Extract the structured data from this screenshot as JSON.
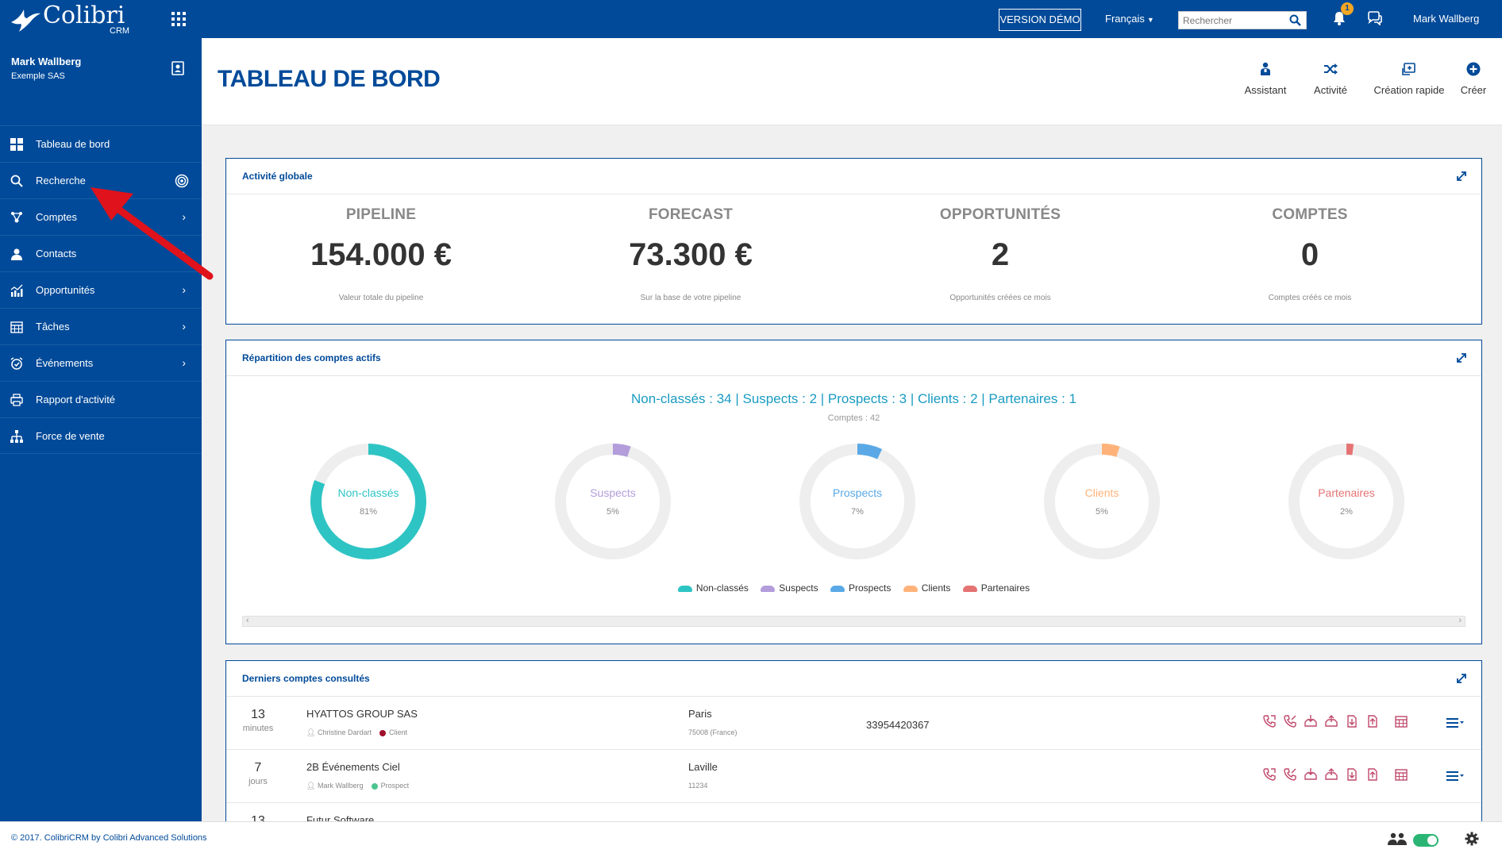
{
  "app": {
    "name": "Colibri",
    "subname": "CRM"
  },
  "topbar": {
    "demo_label": "VERSION DÉMO",
    "language": "Français",
    "search_placeholder": "Rechercher",
    "notifications_count": "1",
    "user_name": "Mark Wallberg"
  },
  "sidebar": {
    "user_name": "Mark Wallberg",
    "company": "Exemple SAS",
    "items": [
      {
        "label": "Tableau de bord",
        "icon": "dashboard-icon",
        "has_arrow": false
      },
      {
        "label": "Recherche",
        "icon": "search-icon",
        "has_arrow": false
      },
      {
        "label": "Comptes",
        "icon": "accounts-icon",
        "has_arrow": true
      },
      {
        "label": "Contacts",
        "icon": "contacts-icon",
        "has_arrow": true
      },
      {
        "label": "Opportunités",
        "icon": "chart-icon",
        "has_arrow": true
      },
      {
        "label": "Tâches",
        "icon": "calendar-grid-icon",
        "has_arrow": true
      },
      {
        "label": "Événements",
        "icon": "alarm-icon",
        "has_arrow": true
      },
      {
        "label": "Rapport d'activité",
        "icon": "printer-icon",
        "has_arrow": false
      },
      {
        "label": "Force de vente",
        "icon": "org-chart-icon",
        "has_arrow": false
      }
    ]
  },
  "header": {
    "title": "TABLEAU DE BORD",
    "actions": [
      {
        "label": "Assistant",
        "icon": "assistant-icon"
      },
      {
        "label": "Activité",
        "icon": "shuffle-icon"
      },
      {
        "label": "Création rapide",
        "icon": "quick-create-icon"
      },
      {
        "label": "Créer",
        "icon": "plus-circle-icon"
      }
    ]
  },
  "global_activity": {
    "title": "Activité globale",
    "kpis": [
      {
        "title": "PIPELINE",
        "value": "154.000 €",
        "subtitle": "Valeur totale du pipeline"
      },
      {
        "title": "FORECAST",
        "value": "73.300 €",
        "subtitle": "Sur la base de votre pipeline"
      },
      {
        "title": "OPPORTUNITÉS",
        "value": "2",
        "subtitle": "Opportunités créées ce mois"
      },
      {
        "title": "COMPTES",
        "value": "0",
        "subtitle": "Comptes créés ce mois"
      }
    ]
  },
  "accounts_split": {
    "title": "Répartition des comptes actifs",
    "summary": "Non-classés : 34 | Suspects : 2 | Prospects : 3 | Clients : 2 | Partenaires : 1",
    "total": "Comptes : 42",
    "colors": {
      "non_classes": "#2ec4c4",
      "suspects": "#b39ddb",
      "prospects": "#5aa9e6",
      "clients": "#ffb37a",
      "partenaires": "#e57373"
    }
  },
  "chart_data": {
    "type": "pie",
    "title": "Répartition des comptes actifs",
    "categories": [
      "Non-classés",
      "Suspects",
      "Prospects",
      "Clients",
      "Partenaires"
    ],
    "values": [
      34,
      2,
      3,
      2,
      1
    ],
    "percent_labels": [
      "81%",
      "5%",
      "7%",
      "5%",
      "2%"
    ],
    "percent_values": [
      81,
      5,
      7,
      5,
      2
    ],
    "colors": [
      "#2ec4c4",
      "#b39ddb",
      "#5aa9e6",
      "#ffb37a",
      "#e57373"
    ],
    "total_label": "Comptes : 42",
    "legend_placement": "bottom"
  },
  "recent_accounts": {
    "title": "Derniers comptes consultés",
    "rows": [
      {
        "ago": "13",
        "unit": "minutes",
        "name": "HYATTOS GROUP SAS",
        "owner": "Christine Dardart",
        "status": "Client",
        "status_color": "#a0112b",
        "city": "Paris",
        "zip": "75008 (France)",
        "phone": "33954420367"
      },
      {
        "ago": "7",
        "unit": "jours",
        "name": "2B Événements Ciel",
        "owner": "Mark Wallberg",
        "status": "Prospect",
        "status_color": "#4cc48f",
        "city": "Laville",
        "zip": "11234",
        "phone": ""
      },
      {
        "ago": "13",
        "unit": "",
        "name": "Futur Software",
        "owner": "",
        "status": "",
        "status_color": "#ffffff",
        "city": "",
        "zip": "",
        "phone": ""
      }
    ]
  },
  "footer": {
    "copyright": "© 2017. ColibriCRM by Colibri Advanced Solutions"
  }
}
